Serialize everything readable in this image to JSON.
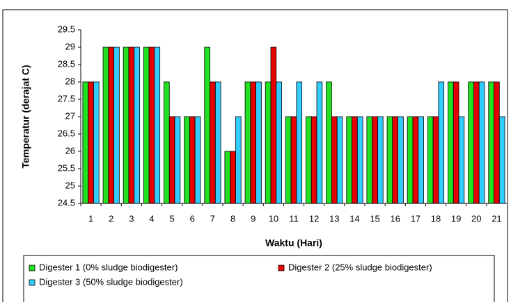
{
  "chart_data": {
    "type": "bar",
    "x_label": "Waktu (Hari)",
    "y_label": "Temperatur (derajat C)",
    "categories": [
      "1",
      "2",
      "3",
      "4",
      "5",
      "6",
      "7",
      "8",
      "9",
      "10",
      "11",
      "12",
      "13",
      "14",
      "15",
      "16",
      "17",
      "18",
      "19",
      "20",
      "21"
    ],
    "series": [
      {
        "name": "Digester 1 (0% sludge biodigester)",
        "color": "#22e022",
        "values": [
          28,
          29,
          29,
          29,
          28,
          27,
          29,
          26,
          28,
          28,
          27,
          27,
          28,
          27,
          27,
          27,
          27,
          27,
          28,
          28,
          28
        ]
      },
      {
        "name": "Digester 2 (25% sludge biodigester)",
        "color": "#e60000",
        "values": [
          28,
          29,
          29,
          29,
          27,
          27,
          28,
          26,
          28,
          29,
          27,
          27,
          27,
          27,
          27,
          27,
          27,
          27,
          28,
          28,
          28
        ]
      },
      {
        "name": "Digester 3 (50% sludge biodigester)",
        "color": "#33ccff",
        "values": [
          28,
          29,
          29,
          29,
          27,
          27,
          28,
          27,
          28,
          28,
          28,
          28,
          27,
          27,
          27,
          27,
          27,
          28,
          27,
          28,
          27
        ]
      }
    ],
    "ylim": [
      24.5,
      29.5
    ],
    "yticks": [
      24.5,
      25,
      25.5,
      26,
      26.5,
      27,
      27.5,
      28,
      28.5,
      29,
      29.5
    ],
    "grid": false
  }
}
